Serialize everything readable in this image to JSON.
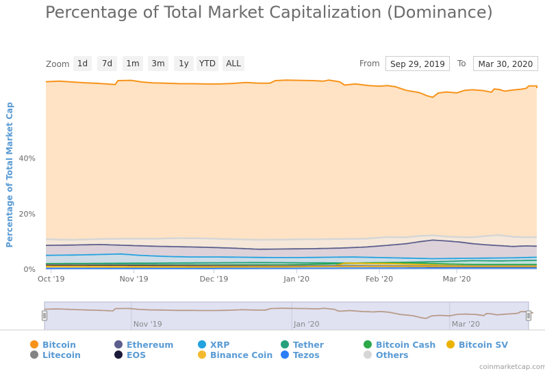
{
  "title": "Percentage of Total Market Capitalization (Dominance)",
  "zoom": {
    "label": "Zoom",
    "buttons": [
      "1d",
      "7d",
      "1m",
      "3m",
      "1y",
      "YTD",
      "ALL"
    ]
  },
  "range": {
    "from_label": "From",
    "from_value": "Sep 29, 2019",
    "to_label": "To",
    "to_value": "Mar 30, 2020"
  },
  "credit": "coinmarketcap.com",
  "chart_data": {
    "type": "area",
    "title": "Percentage of Total Market Capitalization (Dominance)",
    "ylabel": "Percentage of Total Market Cap",
    "xlabel": "",
    "ylim": [
      0,
      68
    ],
    "yticks": [
      {
        "value": 0,
        "label": "0%"
      },
      {
        "value": 20,
        "label": "20%"
      },
      {
        "value": 40,
        "label": "40%"
      }
    ],
    "xlim": [
      0,
      184
    ],
    "xticks": [
      {
        "day": 2,
        "label": "Oct '19"
      },
      {
        "day": 33,
        "label": "Nov '19"
      },
      {
        "day": 63,
        "label": "Dec '19"
      },
      {
        "day": 94,
        "label": "Jan '20"
      },
      {
        "day": 125,
        "label": "Feb '20"
      },
      {
        "day": 154,
        "label": "Mar '20"
      }
    ],
    "grid": true,
    "legend_position": "bottom",
    "navigator": {
      "labels": [
        {
          "day": 33,
          "label": "Nov '19"
        },
        {
          "day": 94,
          "label": "Jan '20"
        },
        {
          "day": 154,
          "label": "Mar '20"
        }
      ]
    },
    "series": [
      {
        "name": "Bitcoin",
        "color": "#f7931a",
        "fill": "#ffe3c4",
        "points": [
          [
            0,
            67.6
          ],
          [
            5,
            67.8
          ],
          [
            10,
            67.5
          ],
          [
            15,
            67.2
          ],
          [
            20,
            67.0
          ],
          [
            26,
            66.6
          ],
          [
            27,
            68.0
          ],
          [
            32,
            68.1
          ],
          [
            36,
            67.5
          ],
          [
            40,
            67.2
          ],
          [
            45,
            67.1
          ],
          [
            50,
            66.9
          ],
          [
            55,
            66.9
          ],
          [
            60,
            66.8
          ],
          [
            65,
            66.8
          ],
          [
            70,
            67.0
          ],
          [
            75,
            67.3
          ],
          [
            80,
            67.1
          ],
          [
            84,
            67.1
          ],
          [
            86,
            68.0
          ],
          [
            90,
            68.2
          ],
          [
            95,
            68.1
          ],
          [
            100,
            68.0
          ],
          [
            104,
            67.8
          ],
          [
            106,
            68.2
          ],
          [
            110,
            67.6
          ],
          [
            112,
            66.4
          ],
          [
            116,
            66.8
          ],
          [
            121,
            66.2
          ],
          [
            125,
            66.0
          ],
          [
            128,
            66.2
          ],
          [
            131,
            65.8
          ],
          [
            135,
            64.5
          ],
          [
            140,
            63.7
          ],
          [
            143,
            62.5
          ],
          [
            145,
            62.0
          ],
          [
            147,
            63.5
          ],
          [
            150,
            63.9
          ],
          [
            154,
            63.6
          ],
          [
            157,
            64.5
          ],
          [
            160,
            64.7
          ],
          [
            164,
            64.4
          ],
          [
            166,
            64.0
          ],
          [
            167,
            63.8
          ],
          [
            168,
            65.0
          ],
          [
            170,
            64.8
          ],
          [
            172,
            64.2
          ],
          [
            175,
            64.6
          ],
          [
            178,
            64.9
          ],
          [
            180,
            65.2
          ],
          [
            181,
            66.1
          ],
          [
            184,
            66.1
          ],
          [
            184,
            65.3
          ]
        ]
      },
      {
        "name": "Ethereum",
        "color": "#5c5e8c",
        "fill": "#c8c0d8",
        "points": [
          [
            0,
            8.6
          ],
          [
            10,
            8.7
          ],
          [
            20,
            8.9
          ],
          [
            30,
            8.6
          ],
          [
            40,
            8.3
          ],
          [
            50,
            8.1
          ],
          [
            60,
            7.9
          ],
          [
            70,
            7.6
          ],
          [
            80,
            7.2
          ],
          [
            90,
            7.3
          ],
          [
            100,
            7.4
          ],
          [
            110,
            7.6
          ],
          [
            120,
            8.0
          ],
          [
            128,
            8.6
          ],
          [
            135,
            9.2
          ],
          [
            140,
            9.9
          ],
          [
            145,
            10.5
          ],
          [
            150,
            10.2
          ],
          [
            155,
            9.8
          ],
          [
            160,
            9.2
          ],
          [
            165,
            8.8
          ],
          [
            170,
            8.5
          ],
          [
            175,
            8.2
          ],
          [
            180,
            8.4
          ],
          [
            184,
            8.3
          ]
        ]
      },
      {
        "name": "XRP",
        "color": "#23a2e0",
        "fill": "#bfe3f2",
        "points": [
          [
            0,
            5.0
          ],
          [
            10,
            5.1
          ],
          [
            20,
            5.3
          ],
          [
            28,
            5.5
          ],
          [
            35,
            5.0
          ],
          [
            45,
            4.6
          ],
          [
            55,
            4.4
          ],
          [
            65,
            4.4
          ],
          [
            75,
            4.3
          ],
          [
            85,
            4.2
          ],
          [
            95,
            4.2
          ],
          [
            105,
            4.3
          ],
          [
            115,
            4.4
          ],
          [
            125,
            4.2
          ],
          [
            135,
            4.0
          ],
          [
            145,
            3.8
          ],
          [
            155,
            3.9
          ],
          [
            165,
            4.0
          ],
          [
            175,
            4.1
          ],
          [
            184,
            4.3
          ]
        ]
      },
      {
        "name": "Tether",
        "color": "#26a17b",
        "fill": "#b8e3d4",
        "points": [
          [
            0,
            2.0
          ],
          [
            20,
            2.1
          ],
          [
            40,
            2.2
          ],
          [
            60,
            2.3
          ],
          [
            80,
            2.4
          ],
          [
            100,
            2.3
          ],
          [
            120,
            2.2
          ],
          [
            140,
            2.6
          ],
          [
            150,
            2.8
          ],
          [
            160,
            3.1
          ],
          [
            170,
            3.0
          ],
          [
            184,
            3.2
          ]
        ]
      },
      {
        "name": "Bitcoin Cash",
        "color": "#2ba84a",
        "fill": "#c4e6c9",
        "points": [
          [
            0,
            1.9
          ],
          [
            30,
            1.7
          ],
          [
            60,
            1.6
          ],
          [
            90,
            1.6
          ],
          [
            110,
            2.0
          ],
          [
            120,
            2.3
          ],
          [
            130,
            2.4
          ],
          [
            140,
            2.2
          ],
          [
            150,
            1.9
          ],
          [
            160,
            1.7
          ],
          [
            184,
            1.7
          ]
        ]
      },
      {
        "name": "Bitcoin SV",
        "color": "#eab300",
        "fill": "#f2e0a0",
        "points": [
          [
            0,
            0.9
          ],
          [
            30,
            0.8
          ],
          [
            60,
            0.7
          ],
          [
            90,
            0.8
          ],
          [
            108,
            1.2
          ],
          [
            112,
            2.2
          ],
          [
            120,
            2.1
          ],
          [
            130,
            2.0
          ],
          [
            140,
            1.7
          ],
          [
            150,
            1.4
          ],
          [
            160,
            1.2
          ],
          [
            184,
            1.2
          ]
        ]
      },
      {
        "name": "Litecoin",
        "color": "#838383",
        "fill": "#d4d4d4",
        "points": [
          [
            0,
            1.6
          ],
          [
            30,
            1.5
          ],
          [
            60,
            1.4
          ],
          [
            90,
            1.3
          ],
          [
            120,
            1.3
          ],
          [
            150,
            1.2
          ],
          [
            184,
            1.2
          ]
        ]
      },
      {
        "name": "EOS",
        "color": "#1a1a3a",
        "fill": "#b8b8c8",
        "points": [
          [
            0,
            1.3
          ],
          [
            30,
            1.2
          ],
          [
            60,
            1.1
          ],
          [
            90,
            1.0
          ],
          [
            120,
            1.0
          ],
          [
            150,
            0.9
          ],
          [
            184,
            0.9
          ]
        ]
      },
      {
        "name": "Binance Coin",
        "color": "#f3ba2f",
        "fill": "#f8e3b0",
        "points": [
          [
            0,
            1.1
          ],
          [
            30,
            1.0
          ],
          [
            60,
            0.9
          ],
          [
            90,
            0.9
          ],
          [
            120,
            1.0
          ],
          [
            150,
            1.0
          ],
          [
            184,
            1.0
          ]
        ]
      },
      {
        "name": "Tezos",
        "color": "#2c7df7",
        "fill": "#bcd5f7",
        "points": [
          [
            0,
            0.3
          ],
          [
            60,
            0.3
          ],
          [
            120,
            0.4
          ],
          [
            184,
            0.4
          ]
        ]
      },
      {
        "name": "Others",
        "color": "#d6d6d6",
        "fill": "#ededed",
        "points": [
          [
            0,
            10.8
          ],
          [
            10,
            10.6
          ],
          [
            20,
            10.9
          ],
          [
            30,
            11.0
          ],
          [
            40,
            11.0
          ],
          [
            50,
            11.2
          ],
          [
            60,
            11.1
          ],
          [
            70,
            10.8
          ],
          [
            80,
            10.6
          ],
          [
            90,
            10.7
          ],
          [
            100,
            10.8
          ],
          [
            110,
            10.9
          ],
          [
            120,
            11.0
          ],
          [
            128,
            11.6
          ],
          [
            135,
            11.5
          ],
          [
            140,
            12.0
          ],
          [
            145,
            12.2
          ],
          [
            150,
            11.8
          ],
          [
            155,
            11.6
          ],
          [
            160,
            11.5
          ],
          [
            165,
            12.0
          ],
          [
            170,
            12.3
          ],
          [
            175,
            11.7
          ],
          [
            180,
            11.5
          ],
          [
            184,
            11.6
          ]
        ]
      }
    ]
  }
}
